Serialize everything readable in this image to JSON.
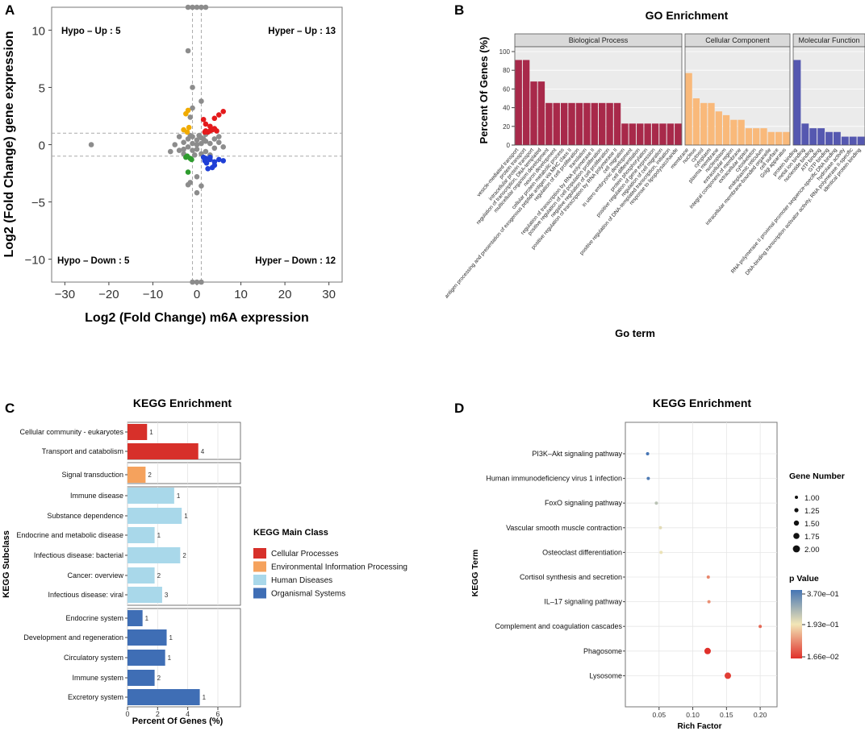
{
  "panels": {
    "A": {
      "letter": "A",
      "xlabel": "Log2 (Fold Change) m6A expression",
      "ylabel": "Log2 (Fold Change) gene expression",
      "xlim": [
        -33,
        33
      ],
      "ylim": [
        -12,
        12
      ],
      "xticks": [
        -30,
        -20,
        -10,
        0,
        10,
        20,
        30
      ],
      "yticks": [
        -10,
        -5,
        0,
        5,
        10
      ],
      "quadrants": {
        "hypo_up": "Hypo – Up : 5",
        "hyper_up": "Hyper – Up : 13",
        "hypo_down": "Hypo – Down : 5",
        "hyper_down": "Hyper – Down : 12"
      },
      "threshold_lines": {
        "x": [
          -1,
          1
        ],
        "y": [
          -1,
          1
        ]
      },
      "colors": {
        "neutral": "#8c8c8c",
        "hyper_up": "#e41a1c",
        "hypo_up": "#f0ab00",
        "hyper_down": "#1f3fd6",
        "hypo_down": "#2e9c2e"
      }
    },
    "B": {
      "letter": "B",
      "title": "GO Enrichment",
      "ylabel": "Percent Of Genes (%)",
      "xlabel": "Go term"
    },
    "C": {
      "letter": "C",
      "title": "KEGG Enrichment",
      "xlabel": "Percent Of Genes (%)",
      "ylabel": "KEGG Subclass",
      "legend_title": "KEGG Main Class"
    },
    "D": {
      "letter": "D",
      "title": "KEGG Enrichment",
      "xlabel": "Rich Factor",
      "ylabel": "KEGG Term",
      "size_legend_title": "Gene Number",
      "color_legend_title": "p Value"
    }
  },
  "chart_data": [
    {
      "panel": "A",
      "type": "scatter",
      "title": "",
      "xlabel": "Log2 (Fold Change) m6A expression",
      "ylabel": "Log2 (Fold Change) gene expression",
      "series": [
        {
          "name": "Hyper-Up",
          "color": "#e41a1c",
          "points": [
            [
              2,
              1.2
            ],
            [
              3,
              1.6
            ],
            [
              4,
              1.4
            ],
            [
              5,
              2.6
            ],
            [
              6,
              2.9
            ],
            [
              1.5,
              2.2
            ],
            [
              2.5,
              1.1
            ],
            [
              3.5,
              1.3
            ],
            [
              4.5,
              1.2
            ],
            [
              2,
              1.8
            ],
            [
              1.8,
              1.1
            ],
            [
              4,
              2.3
            ],
            [
              3,
              1.2
            ]
          ]
        },
        {
          "name": "Hypo-Up",
          "color": "#f0ab00",
          "points": [
            [
              -2,
              3.0
            ],
            [
              -2.5,
              2.7
            ],
            [
              -1.8,
              1.5
            ],
            [
              -3,
              1.3
            ],
            [
              -2.2,
              1.1
            ]
          ]
        },
        {
          "name": "Hyper-Down",
          "color": "#1f3fd6",
          "points": [
            [
              2,
              -1.2
            ],
            [
              3,
              -1.3
            ],
            [
              4,
              -1.5
            ],
            [
              5,
              -1.3
            ],
            [
              6,
              -1.4
            ],
            [
              2.5,
              -2.1
            ],
            [
              3.5,
              -2.0
            ],
            [
              4,
              -1.8
            ],
            [
              1.5,
              -1.1
            ],
            [
              2.2,
              -1.6
            ],
            [
              3,
              -1.1
            ],
            [
              1.8,
              -1.4
            ]
          ]
        },
        {
          "name": "Hypo-Down",
          "color": "#2e9c2e",
          "points": [
            [
              -2,
              -2.4
            ],
            [
              -1.5,
              -1.2
            ],
            [
              -2.5,
              -1.1
            ],
            [
              -1.2,
              -1.3
            ],
            [
              -2.2,
              -1.0
            ]
          ]
        },
        {
          "name": "Other",
          "color": "#8c8c8c",
          "points": [
            [
              -24,
              0
            ],
            [
              -2,
              8.2
            ],
            [
              -1,
              5
            ],
            [
              -1.5,
              2.4
            ],
            [
              1,
              3.8
            ],
            [
              -1,
              3.2
            ],
            [
              -4,
              -0.5
            ],
            [
              -3,
              0.2
            ],
            [
              -2,
              0.5
            ],
            [
              -1,
              0.7
            ],
            [
              0,
              0.4
            ],
            [
              1,
              0.6
            ],
            [
              2,
              0.3
            ],
            [
              3,
              0.1
            ],
            [
              4,
              0.5
            ],
            [
              5,
              0.2
            ],
            [
              6,
              -0.2
            ],
            [
              -5,
              0
            ],
            [
              -6,
              -0.6
            ],
            [
              -3,
              -0.8
            ],
            [
              -1,
              -0.5
            ],
            [
              0,
              -0.4
            ],
            [
              1,
              -0.8
            ],
            [
              2,
              -0.6
            ],
            [
              3,
              -0.9
            ],
            [
              4,
              -0.3
            ],
            [
              -2,
              -0.2
            ],
            [
              0,
              0
            ],
            [
              1,
              0.1
            ],
            [
              -1,
              0.1
            ],
            [
              0.5,
              0.8
            ],
            [
              -0.5,
              -0.9
            ],
            [
              1.5,
              0.5
            ],
            [
              -1.5,
              0.8
            ],
            [
              2,
              0.9
            ],
            [
              -4,
              0.7
            ],
            [
              -3,
              -0.4
            ],
            [
              5,
              0.7
            ],
            [
              0,
              -2.8
            ],
            [
              -1.5,
              -3.3
            ],
            [
              -2,
              -3.5
            ],
            [
              1,
              -3.6
            ],
            [
              0,
              -4.2
            ],
            [
              -2,
              12
            ],
            [
              -1,
              12
            ],
            [
              0,
              12
            ],
            [
              1,
              12
            ],
            [
              -1,
              -12
            ],
            [
              0,
              -12
            ],
            [
              1,
              -12
            ],
            [
              2,
              12
            ]
          ]
        }
      ]
    },
    {
      "panel": "B",
      "type": "bar",
      "title": "GO Enrichment",
      "ylabel": "Percent Of Genes (%)",
      "xlabel": "Go term",
      "ylim": [
        0,
        100
      ],
      "facets": [
        {
          "name": "Biological Process",
          "color": "#a8294a",
          "categories": [
            "vesicle-mediated transport",
            "protein transport",
            "intracellular protein transport",
            "regulation of transcription, DNA-templated",
            "multicellular organism development",
            "neuron development",
            "cellular protein metabolic process",
            "antigen processing and presentation of exogenous peptide antigen via MHC class II",
            "regulation of cell proliferation",
            "translation",
            "regulation of transcription by RNA polymerase II",
            "positive regulation of cell population proliferation",
            "negative regulation of cell proliferation",
            "positive regulation of transcription by RNA polymerase II",
            "cell migration",
            "in utero embryonic development",
            "cell differentiation",
            "protein phosphorylation",
            "positive regulation of gene expression",
            "regulation of cell migration",
            "positive regulation of DNA-templated transcription, initiation",
            "response to lipopolysaccharide"
          ],
          "values": [
            91,
            91,
            68,
            68,
            45,
            45,
            45,
            45,
            45,
            45,
            45,
            45,
            45,
            45,
            23,
            23,
            23,
            23,
            23,
            23,
            23,
            23
          ]
        },
        {
          "name": "Cellular Component",
          "color": "#f9b97a",
          "categories": [
            "membrane",
            "nucleus",
            "cytosol",
            "cytoplasm",
            "plasma membrane",
            "nucleoplasm",
            "extracellular region",
            "integral component of membrane",
            "extracellular space",
            "cytoskeleton",
            "endoplasmic reticulum",
            "intracellular membrane-bounded organelle",
            "cell surface",
            "Golgi apparatus"
          ],
          "values": [
            77,
            50,
            45,
            45,
            36,
            32,
            27,
            27,
            18,
            18,
            18,
            14,
            14,
            14
          ]
        },
        {
          "name": "Molecular Function",
          "color": "#5558b0",
          "categories": [
            "protein binding",
            "metal ion binding",
            "nucleotide binding",
            "ATP binding",
            "GTP binding",
            "RNA polymerase II proximal promoter sequence-specific DNA binding",
            "hydrolase activity",
            "DNA-binding transcription activator activity, RNA polymerase II-specific",
            "identical protein binding"
          ],
          "values": [
            91,
            23,
            18,
            18,
            14,
            14,
            9,
            9,
            9
          ]
        }
      ]
    },
    {
      "panel": "C",
      "type": "bar",
      "orientation": "horizontal",
      "title": "KEGG Enrichment",
      "xlabel": "Percent Of Genes (%)",
      "ylabel": "KEGG Subclass",
      "xlim": [
        0,
        7.5
      ],
      "xticks": [
        0,
        2,
        4,
        6
      ],
      "groups": [
        {
          "name": "Cellular Processes",
          "color": "#d7302a",
          "rows": [
            {
              "label": "Cellular community - eukaryotes",
              "value": 1.3,
              "count": "1"
            },
            {
              "label": "Transport and catabolism",
              "value": 4.7,
              "count": "4"
            }
          ]
        },
        {
          "name": "Environmental Information Processing",
          "color": "#f5a25d",
          "rows": [
            {
              "label": "Signal transduction",
              "value": 1.2,
              "count": "2"
            }
          ]
        },
        {
          "name": "Human Diseases",
          "color": "#a9d8ea",
          "rows": [
            {
              "label": "Immune disease",
              "value": 3.1,
              "count": "1"
            },
            {
              "label": "Substance dependence",
              "value": 3.6,
              "count": "1"
            },
            {
              "label": "Endocrine and metabolic disease",
              "value": 1.8,
              "count": "1"
            },
            {
              "label": "Infectious disease: bacterial",
              "value": 3.5,
              "count": "2"
            },
            {
              "label": "Cancer: overview",
              "value": 1.8,
              "count": "2"
            },
            {
              "label": "Infectious disease: viral",
              "value": 2.3,
              "count": "3"
            }
          ]
        },
        {
          "name": "Organismal Systems",
          "color": "#3f6eb5",
          "rows": [
            {
              "label": "Endocrine system",
              "value": 1.0,
              "count": "1"
            },
            {
              "label": "Development and regeneration",
              "value": 2.6,
              "count": "1"
            },
            {
              "label": "Circulatory system",
              "value": 2.5,
              "count": "1"
            },
            {
              "label": "Immune system",
              "value": 1.8,
              "count": "2"
            },
            {
              "label": "Excretory system",
              "value": 4.8,
              "count": "1"
            }
          ]
        }
      ]
    },
    {
      "panel": "D",
      "type": "scatter",
      "title": "KEGG Enrichment",
      "xlabel": "Rich Factor",
      "ylabel": "KEGG Term",
      "xlim": [
        0.0,
        0.225
      ],
      "xticks": [
        0.05,
        0.1,
        0.15,
        0.2
      ],
      "xtick_labels": [
        "0.05",
        "0.10",
        "0.15",
        "0.20"
      ],
      "terms": [
        {
          "label": "PI3K–Akt signaling pathway",
          "rich": 0.033,
          "genes": 1,
          "p": 0.37
        },
        {
          "label": "Human immunodeficiency virus 1 infection",
          "rich": 0.034,
          "genes": 1,
          "p": 0.36
        },
        {
          "label": "FoxO signaling pathway",
          "rich": 0.046,
          "genes": 1,
          "p": 0.25
        },
        {
          "label": "Vascular smooth muscle contraction",
          "rich": 0.052,
          "genes": 1,
          "p": 0.21
        },
        {
          "label": "Osteoclast differentiation",
          "rich": 0.053,
          "genes": 1,
          "p": 0.2
        },
        {
          "label": "Cortisol synthesis and secretion",
          "rich": 0.123,
          "genes": 1,
          "p": 0.1
        },
        {
          "label": "IL–17 signaling pathway",
          "rich": 0.124,
          "genes": 1,
          "p": 0.11
        },
        {
          "label": "Complement and coagulation cascades",
          "rich": 0.2,
          "genes": 1,
          "p": 0.07
        },
        {
          "label": "Phagosome",
          "rich": 0.122,
          "genes": 2,
          "p": 0.0166
        },
        {
          "label": "Lysosome",
          "rich": 0.152,
          "genes": 2,
          "p": 0.03
        }
      ],
      "size_legend": [
        "1.00",
        "1.25",
        "1.50",
        "1.75",
        "2.00"
      ],
      "color_legend": [
        "3.70e–01",
        "1.93e–01",
        "1.66e–02"
      ]
    }
  ]
}
